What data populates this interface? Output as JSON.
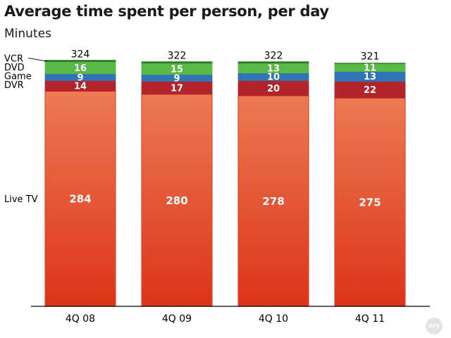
{
  "title": "Average time spent per person, per day",
  "subtitle": "Minutes",
  "logo_text": "ars",
  "chart_data": {
    "type": "bar",
    "stacked": true,
    "title": "Average time spent per person, per day",
    "ylabel": "Minutes",
    "categories": [
      "4Q 08",
      "4Q 09",
      "4Q 10",
      "4Q 11"
    ],
    "totals": [
      324,
      322,
      322,
      321
    ],
    "ylim": [
      0,
      330
    ],
    "grid": false,
    "legend": "left",
    "series": [
      {
        "name": "Live TV",
        "values": [
          284,
          280,
          278,
          275
        ],
        "color": "#e0492b",
        "label_color": "#ffffff"
      },
      {
        "name": "DVR",
        "values": [
          14,
          17,
          20,
          22
        ],
        "color": "#b2242a",
        "label_color": "#ffffff"
      },
      {
        "name": "Game",
        "values": [
          9,
          9,
          10,
          13
        ],
        "color": "#2f74b5",
        "label_color": "#ffffff"
      },
      {
        "name": "DVD",
        "values": [
          16,
          15,
          13,
          11
        ],
        "color": "#58b947",
        "label_color": "#ffffff"
      },
      {
        "name": "VCR",
        "values": [
          1,
          1,
          1,
          0
        ],
        "color": "#2b7a2b",
        "label_color": "#ffffff",
        "show_value": false
      }
    ]
  }
}
